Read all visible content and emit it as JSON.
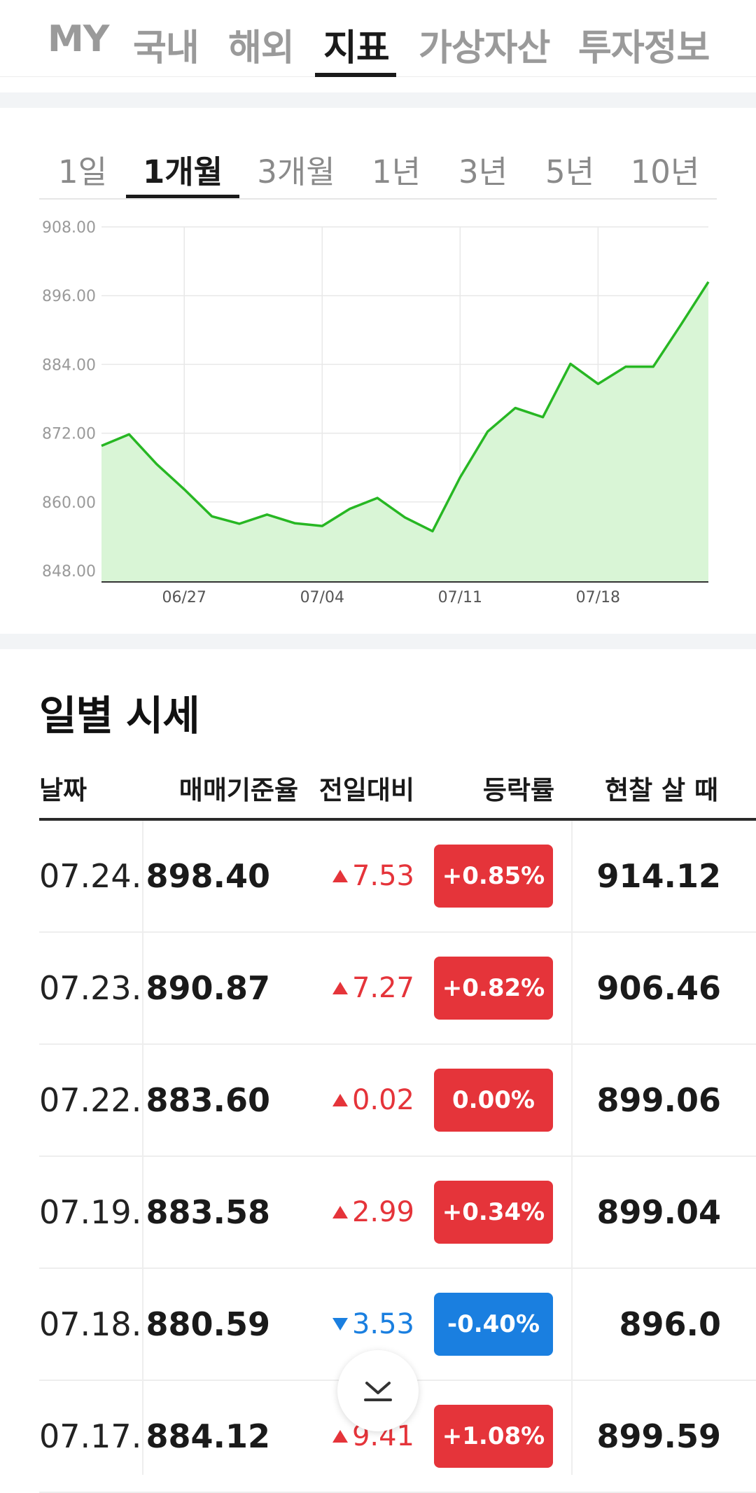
{
  "top_nav": {
    "tabs": [
      "MY",
      "국내",
      "해외",
      "지표",
      "가상자산",
      "투자정보"
    ],
    "active": "지표"
  },
  "period_tabs": {
    "items": [
      "1일",
      "1개월",
      "3개월",
      "1년",
      "3년",
      "5년",
      "10년"
    ],
    "active": "1개월"
  },
  "chart_data": {
    "type": "area",
    "x_tick_labels": [
      "06/27",
      "07/04",
      "07/11",
      "07/18"
    ],
    "y_tick_labels": [
      "908.00",
      "896.00",
      "884.00",
      "872.00",
      "860.00",
      "848.00"
    ],
    "ylim": [
      848,
      908
    ],
    "grid": true,
    "colors": {
      "line": "#27b723",
      "fill": "#d9f5d6"
    },
    "series": [
      {
        "values": [
          869.8,
          871.8,
          866.6,
          862.2,
          857.5,
          856.2,
          857.8,
          856.3,
          855.8,
          858.8,
          860.7,
          857.3,
          854.9,
          864.3,
          872.3,
          876.4,
          874.8,
          884.1,
          880.6,
          883.6,
          883.6,
          890.9,
          898.4
        ]
      }
    ]
  },
  "daily": {
    "title": "일별 시세",
    "headers": {
      "date": "날짜",
      "rate": "매매기준율",
      "change": "전일대비",
      "pct": "등락률",
      "cash_buy": "현찰 살 때"
    },
    "rows": [
      {
        "date": "07.24.",
        "rate": "898.40",
        "change": "7.53",
        "dir": "up",
        "pct": "+0.85%",
        "cash": "914.12"
      },
      {
        "date": "07.23.",
        "rate": "890.87",
        "change": "7.27",
        "dir": "up",
        "pct": "+0.82%",
        "cash": "906.46"
      },
      {
        "date": "07.22.",
        "rate": "883.60",
        "change": "0.02",
        "dir": "up",
        "pct": "0.00%",
        "cash": "899.06"
      },
      {
        "date": "07.19.",
        "rate": "883.58",
        "change": "2.99",
        "dir": "up",
        "pct": "+0.34%",
        "cash": "899.04"
      },
      {
        "date": "07.18.",
        "rate": "880.59",
        "change": "3.53",
        "dir": "down",
        "pct": "-0.40%",
        "cash": "896.0"
      },
      {
        "date": "07.17.",
        "rate": "884.12",
        "change": "9.41",
        "dir": "up",
        "pct": "+1.08%",
        "cash": "899.59"
      }
    ]
  }
}
